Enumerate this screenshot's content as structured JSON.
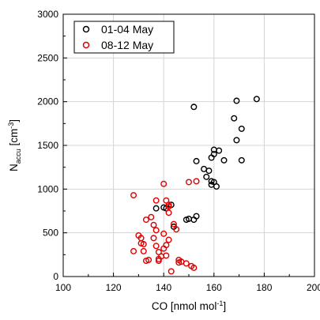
{
  "chart_data": {
    "type": "scatter",
    "title": "",
    "xlabel": {
      "main": "CO [nmol mol",
      "sup": "-1",
      "end": "]"
    },
    "ylabel": {
      "main": "N",
      "sub": "accu",
      "mid": " [cm",
      "sup": "-3",
      "end": "]"
    },
    "xlim": [
      100,
      200
    ],
    "ylim": [
      0,
      3000
    ],
    "x_ticks": [
      "100",
      "120",
      "140",
      "160",
      "180",
      "200"
    ],
    "y_ticks": [
      "0",
      "500",
      "1000",
      "1500",
      "2000",
      "2500",
      "3000"
    ],
    "grid": true,
    "legend_position": "top-left",
    "marker": "open-circle",
    "series": [
      {
        "name": "01-04 May",
        "color": "#000000",
        "points": [
          [
            137,
            780
          ],
          [
            140,
            790
          ],
          [
            141,
            780
          ],
          [
            143,
            820
          ],
          [
            144,
            570
          ],
          [
            149,
            650
          ],
          [
            150,
            660
          ],
          [
            152,
            650
          ],
          [
            153,
            690
          ],
          [
            152,
            1940
          ],
          [
            153,
            1320
          ],
          [
            156,
            1230
          ],
          [
            158,
            1210
          ],
          [
            157,
            1140
          ],
          [
            159,
            1090
          ],
          [
            159,
            1050
          ],
          [
            160,
            1080
          ],
          [
            161,
            1030
          ],
          [
            159,
            1360
          ],
          [
            160,
            1450
          ],
          [
            160,
            1400
          ],
          [
            162,
            1440
          ],
          [
            164,
            1330
          ],
          [
            168,
            1810
          ],
          [
            169,
            1560
          ],
          [
            169,
            2010
          ],
          [
            171,
            1690
          ],
          [
            171,
            1330
          ],
          [
            177,
            2030
          ]
        ]
      },
      {
        "name": "08-12 May",
        "color": "#dd0000",
        "points": [
          [
            128,
            930
          ],
          [
            130,
            470
          ],
          [
            131,
            440
          ],
          [
            131,
            380
          ],
          [
            132,
            370
          ],
          [
            132,
            290
          ],
          [
            133,
            180
          ],
          [
            134,
            190
          ],
          [
            133,
            650
          ],
          [
            135,
            680
          ],
          [
            136,
            590
          ],
          [
            137,
            530
          ],
          [
            136,
            440
          ],
          [
            137,
            350
          ],
          [
            138,
            280
          ],
          [
            137,
            870
          ],
          [
            138,
            200
          ],
          [
            138,
            180
          ],
          [
            139,
            230
          ],
          [
            140,
            1060
          ],
          [
            140,
            490
          ],
          [
            140,
            320
          ],
          [
            141,
            360
          ],
          [
            141,
            240
          ],
          [
            141,
            870
          ],
          [
            142,
            820
          ],
          [
            142,
            800
          ],
          [
            142,
            730
          ],
          [
            142,
            420
          ],
          [
            143,
            60
          ],
          [
            144,
            600
          ],
          [
            145,
            540
          ],
          [
            146,
            160
          ],
          [
            146,
            190
          ],
          [
            147,
            170
          ],
          [
            149,
            150
          ],
          [
            150,
            1080
          ],
          [
            151,
            120
          ],
          [
            152,
            100
          ],
          [
            153,
            1090
          ],
          [
            128,
            290
          ]
        ]
      }
    ]
  }
}
